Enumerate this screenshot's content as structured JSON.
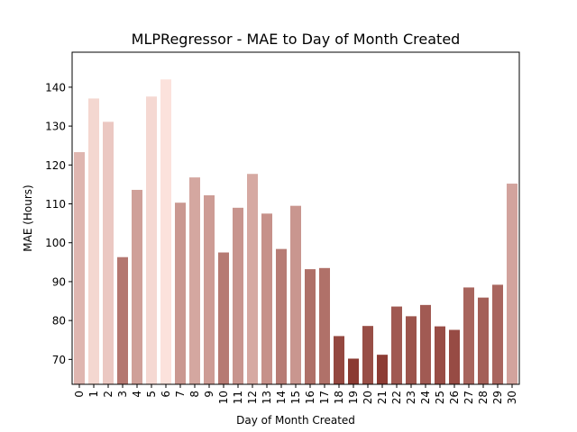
{
  "chart_data": {
    "type": "bar",
    "title": "MLPRegressor - MAE to Day of Month Created",
    "xlabel": "Day of Month Created",
    "ylabel": "MAE (Hours)",
    "categories": [
      "0",
      "1",
      "2",
      "3",
      "4",
      "5",
      "6",
      "7",
      "8",
      "9",
      "10",
      "11",
      "12",
      "13",
      "14",
      "15",
      "16",
      "17",
      "18",
      "19",
      "20",
      "21",
      "22",
      "23",
      "24",
      "25",
      "26",
      "27",
      "28",
      "29",
      "30"
    ],
    "values": [
      123.3,
      137.1,
      131.1,
      96.3,
      113.6,
      137.6,
      142.0,
      110.3,
      116.8,
      112.2,
      97.5,
      109.0,
      117.7,
      107.5,
      98.4,
      109.5,
      93.2,
      93.5,
      76.0,
      70.2,
      78.6,
      71.2,
      83.6,
      81.1,
      84.0,
      78.5,
      77.6,
      88.5,
      85.9,
      89.2,
      115.2
    ],
    "ylim": [
      63.6,
      149.0
    ],
    "yticks": [
      70,
      80,
      90,
      100,
      110,
      120,
      130,
      140
    ],
    "grid": false,
    "legend": "none",
    "color_scale": {
      "low": "#8b3a32",
      "high": "#fce2dc"
    }
  }
}
